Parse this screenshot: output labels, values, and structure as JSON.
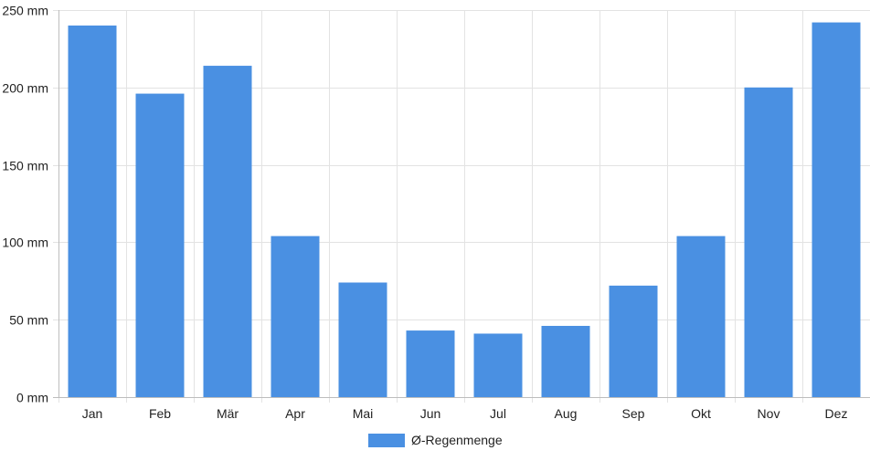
{
  "chart_data": {
    "type": "bar",
    "categories": [
      "Jan",
      "Feb",
      "Mär",
      "Apr",
      "Mai",
      "Jun",
      "Jul",
      "Aug",
      "Sep",
      "Okt",
      "Nov",
      "Dez"
    ],
    "series": [
      {
        "name": "Ø-Regenmenge",
        "values": [
          240,
          196,
          214,
          104,
          74,
          43,
          41,
          46,
          72,
          104,
          200,
          242
        ],
        "color": "#4a90e2"
      }
    ],
    "y_ticks": [
      {
        "value": 0,
        "label": "0 mm"
      },
      {
        "value": 50,
        "label": "50 mm"
      },
      {
        "value": 100,
        "label": "100 mm"
      },
      {
        "value": 150,
        "label": "150 mm"
      },
      {
        "value": 200,
        "label": "200 mm"
      },
      {
        "value": 250,
        "label": "250 mm"
      }
    ],
    "ylim": [
      0,
      250
    ],
    "grid": true,
    "legend_position": "bottom-center"
  }
}
